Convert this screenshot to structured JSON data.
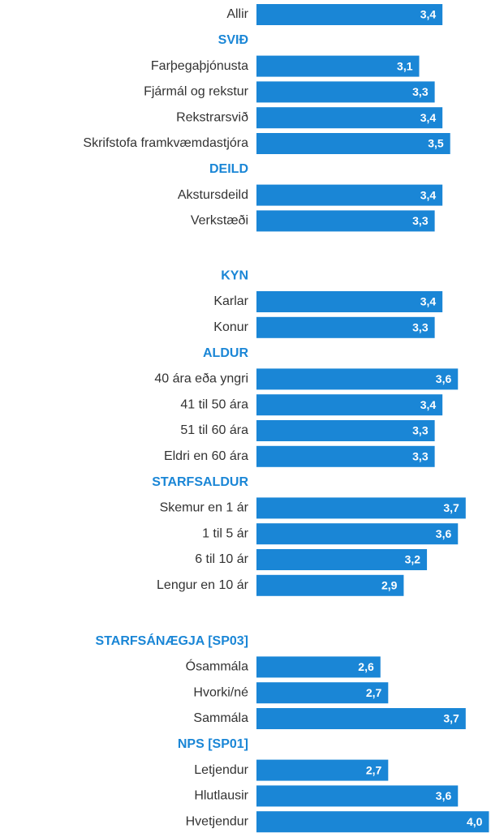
{
  "chart_data": {
    "type": "bar",
    "color": "#1a86d6",
    "xlim": [
      1,
      4.1
    ],
    "groups": [
      {
        "categories": [
          "Allir"
        ],
        "values": [
          3.4
        ],
        "value_labels": [
          "3,4"
        ]
      },
      {
        "name": "SVIÐ",
        "categories": [
          "Farþegaþjónusta",
          "Fjármál og rekstur",
          "Rekstrarsvið",
          "Skrifstofa framkvæmdastjóra"
        ],
        "values": [
          3.1,
          3.3,
          3.4,
          3.5
        ],
        "value_labels": [
          "3,1",
          "3,3",
          "3,4",
          "3,5"
        ]
      },
      {
        "name": "DEILD",
        "categories": [
          "Akstursdeild",
          "Verkstæði"
        ],
        "values": [
          3.4,
          3.3
        ],
        "value_labels": [
          "3,4",
          "3,3"
        ]
      },
      {
        "name": "KYN",
        "categories": [
          "Karlar",
          "Konur"
        ],
        "values": [
          3.4,
          3.3
        ],
        "value_labels": [
          "3,4",
          "3,3"
        ]
      },
      {
        "name": "ALDUR",
        "categories": [
          "40 ára eða yngri",
          "41 til 50 ára",
          "51 til 60 ára",
          "Eldri en 60 ára"
        ],
        "values": [
          3.6,
          3.4,
          3.3,
          3.3
        ],
        "value_labels": [
          "3,6",
          "3,4",
          "3,3",
          "3,3"
        ]
      },
      {
        "name": "STARFSALDUR",
        "categories": [
          "Skemur en 1 ár",
          "1 til 5 ár",
          "6 til 10 ár",
          "Lengur en 10 ár"
        ],
        "values": [
          3.7,
          3.6,
          3.2,
          2.9
        ],
        "value_labels": [
          "3,7",
          "3,6",
          "3,2",
          "2,9"
        ]
      },
      {
        "name": "STARFSÁNÆGJA [SP03]",
        "categories": [
          "Ósammála",
          "Hvorki/né",
          "Sammála"
        ],
        "values": [
          2.6,
          2.7,
          3.7
        ],
        "value_labels": [
          "2,6",
          "2,7",
          "3,7"
        ]
      },
      {
        "name": "NPS [SP01]",
        "categories": [
          "Letjendur",
          "Hlutlausir",
          "Hvetjendur"
        ],
        "values": [
          2.7,
          3.6,
          4.0
        ],
        "value_labels": [
          "2,7",
          "3,6",
          "4,0"
        ]
      }
    ]
  }
}
